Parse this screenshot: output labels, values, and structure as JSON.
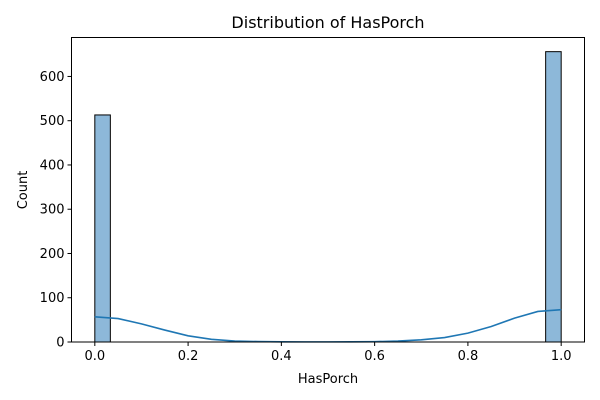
{
  "chart_data": {
    "type": "bar",
    "title": "Distribution of HasPorch",
    "xlabel": "HasPorch",
    "ylabel": "Count",
    "xlim": [
      -0.05,
      1.05
    ],
    "ylim": [
      0,
      688
    ],
    "x_ticks": [
      "0.0",
      "0.2",
      "0.4",
      "0.6",
      "0.8",
      "1.0"
    ],
    "x_tick_values": [
      0.0,
      0.2,
      0.4,
      0.6,
      0.8,
      1.0
    ],
    "y_ticks": [
      "0",
      "100",
      "200",
      "300",
      "400",
      "500",
      "600"
    ],
    "y_tick_values": [
      0,
      100,
      200,
      300,
      400,
      500,
      600
    ],
    "bin_width": 0.0333,
    "bins": [
      {
        "x_start": 0.0,
        "x_end": 0.0333,
        "value": 513
      },
      {
        "x_start": 0.9667,
        "x_end": 1.0,
        "value": 656
      }
    ],
    "kde": {
      "x": [
        0.0,
        0.05,
        0.1,
        0.15,
        0.2,
        0.25,
        0.3,
        0.35,
        0.4,
        0.45,
        0.5,
        0.55,
        0.6,
        0.65,
        0.7,
        0.75,
        0.8,
        0.85,
        0.9,
        0.95,
        1.0
      ],
      "y": [
        57,
        53,
        41,
        27,
        14,
        6,
        2,
        1,
        0.5,
        0.3,
        0.3,
        0.4,
        0.8,
        2,
        5,
        10,
        20,
        35,
        54,
        69,
        73
      ]
    },
    "bar_color": "#8db8d9",
    "bar_edge_color": "#000000",
    "kde_color": "#1f77b4",
    "grid": false
  }
}
